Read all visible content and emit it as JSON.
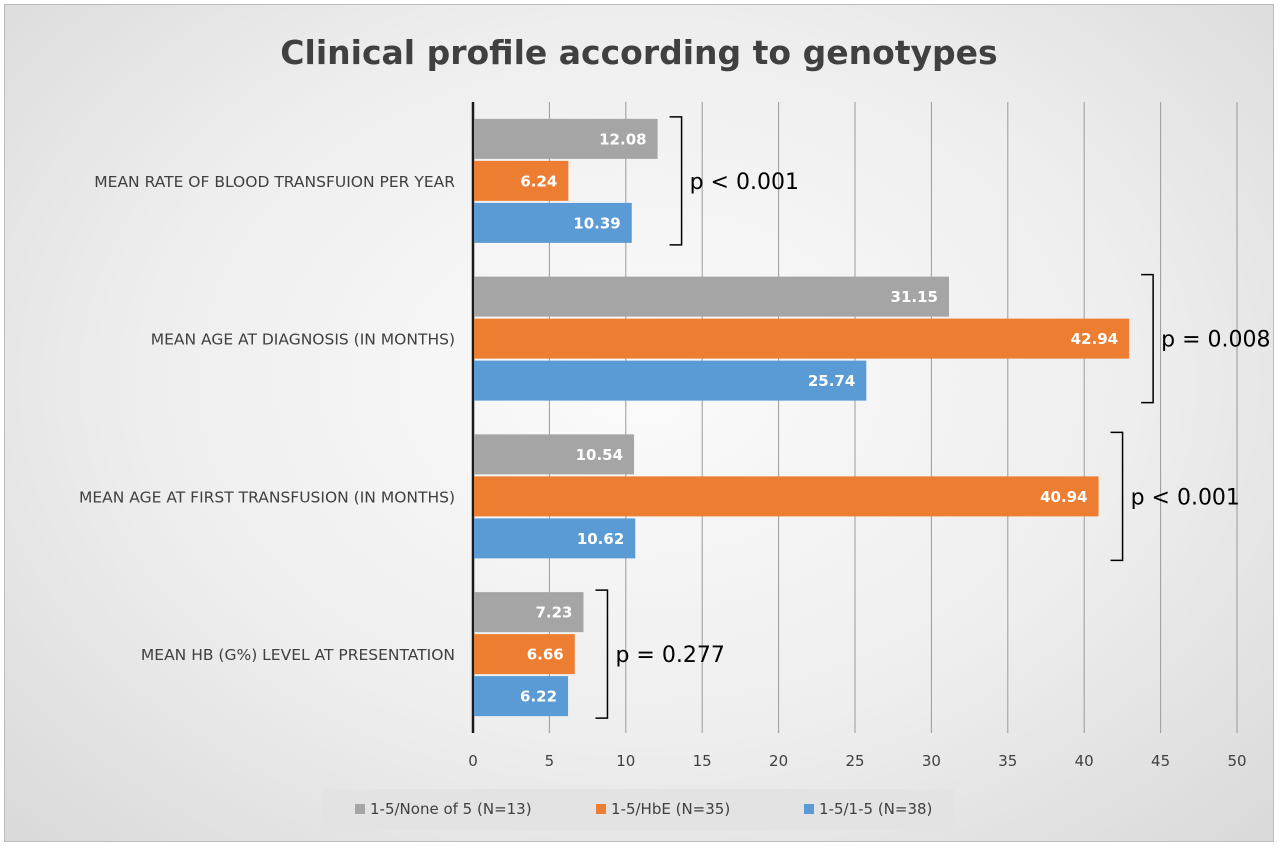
{
  "chart_data": {
    "type": "bar",
    "orientation": "horizontal",
    "title": "Clinical profile according to genotypes",
    "xlim": [
      0,
      50
    ],
    "xticks": [
      "0",
      "5",
      "10",
      "15",
      "20",
      "25",
      "30",
      "35",
      "40",
      "45",
      "50"
    ],
    "grid": "vertical",
    "legend_position": "bottom",
    "categories": [
      "MEAN RATE OF BLOOD TRANSFUION PER YEAR",
      "MEAN AGE AT DIAGNOSIS (IN MONTHS)",
      "MEAN AGE AT FIRST TRANSFUSION (IN MONTHS)",
      "MEAN HB (G%) LEVEL AT PRESENTATION"
    ],
    "series": [
      {
        "name": "1-5/None of 5 (N=13)",
        "color": "#a5a5a5",
        "values": [
          12.08,
          31.15,
          10.54,
          7.23
        ],
        "labels": [
          "12.08",
          "31.15",
          "10.54",
          "7.23"
        ]
      },
      {
        "name": "1-5/HbE (N=35)",
        "color": "#ed7d31",
        "values": [
          6.24,
          42.94,
          40.94,
          6.66
        ],
        "labels": [
          "6.24",
          "42.94",
          "40.94",
          "6.66"
        ]
      },
      {
        "name": "1-5/1-5 (N=38)",
        "color": "#5b9bd5",
        "values": [
          10.39,
          25.74,
          10.62,
          6.22
        ],
        "labels": [
          "10.39",
          "25.74",
          "10.62",
          "6.22"
        ]
      }
    ],
    "annotations": [
      "p < 0.001",
      "p = 0.008",
      "p < 0.001",
      "p = 0.277"
    ]
  }
}
